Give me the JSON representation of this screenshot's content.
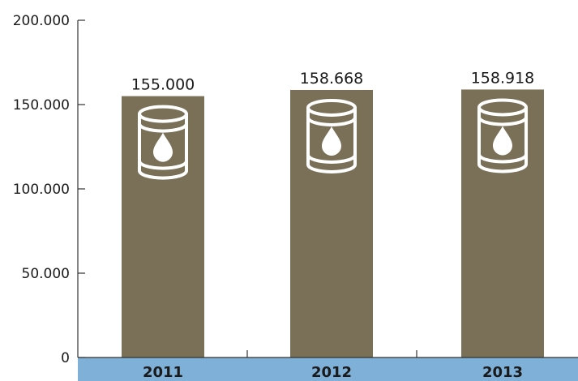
{
  "chart_data": {
    "type": "bar",
    "categories": [
      "2011",
      "2012",
      "2013"
    ],
    "values": [
      155000,
      158668,
      158918
    ],
    "value_labels": [
      "155.000",
      "158.668",
      "158.918"
    ],
    "ylim": [
      0,
      200000
    ],
    "yticks": [
      0,
      50000,
      100000,
      150000,
      200000
    ],
    "ytick_labels": [
      "0",
      "50.000",
      "100.000",
      "150.000",
      "200.000"
    ],
    "bar_icon": "oil-barrel-icon",
    "grid": false,
    "colors": {
      "bar": "#7a6f57",
      "category_band": "#7fb1d8",
      "axis": "#333333",
      "icon": "#ffffff"
    }
  }
}
